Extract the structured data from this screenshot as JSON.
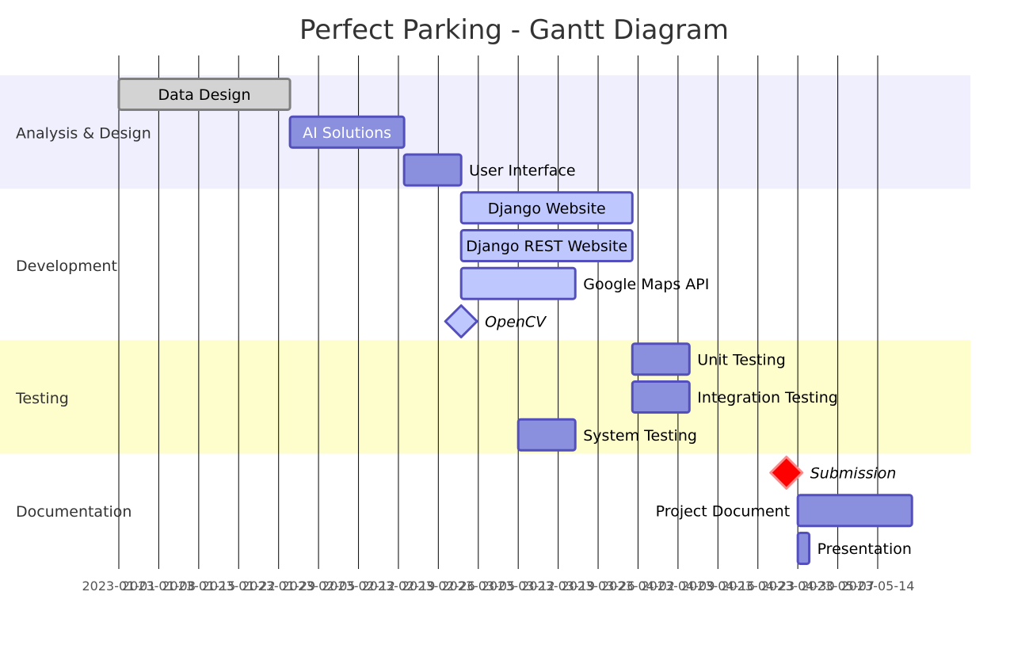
{
  "chart_data": {
    "type": "gantt",
    "title": "Perfect Parking - Gantt Diagram",
    "tick_labels": [
      "2023-01-01",
      "2023-01-08",
      "2023-01-15",
      "2023-01-22",
      "2023-01-29",
      "2023-02-05",
      "2023-02-12",
      "2023-02-19",
      "2023-02-26",
      "2023-03-05",
      "2023-03-12",
      "2023-03-19",
      "2023-03-26",
      "2023-04-02",
      "2023-04-09",
      "2023-04-16",
      "2023-04-23",
      "2023-04-30",
      "2023-05-07",
      "2023-05-14"
    ],
    "axis_start": "2023-01-01",
    "axis_end": "2023-05-14",
    "colors": {
      "section_band_odd": "#efeffd",
      "section_band_even": "#fefdcc",
      "task_fill": "#8a90dd",
      "task_stroke": "#534fbc",
      "active_fill": "#bfc7ff",
      "done_fill": "#d3d3d3",
      "done_stroke": "#808080",
      "crit_fill": "#ff0000",
      "crit_stroke": "#ff8888"
    },
    "sections": [
      {
        "name": "Analysis & Design",
        "tasks": [
          {
            "name": "Data Design",
            "start": "2023-01-01",
            "end": "2023-01-31",
            "status": "done",
            "label_position": "inside"
          },
          {
            "name": "AI Solutions",
            "start": "2023-01-31",
            "end": "2023-02-20",
            "status": "default",
            "label_position": "inside"
          },
          {
            "name": "User Interface",
            "start": "2023-02-20",
            "end": "2023-03-02",
            "status": "default",
            "label_position": "right"
          }
        ]
      },
      {
        "name": "Development",
        "tasks": [
          {
            "name": "Django Website",
            "start": "2023-03-02",
            "end": "2023-04-01",
            "status": "active",
            "label_position": "inside"
          },
          {
            "name": "Django REST Website",
            "start": "2023-03-02",
            "end": "2023-04-01",
            "status": "active",
            "label_position": "inside"
          },
          {
            "name": "Google Maps API",
            "start": "2023-03-02",
            "end": "2023-03-22",
            "status": "active",
            "label_position": "right"
          },
          {
            "name": "OpenCV",
            "start": "2023-03-02",
            "end": "2023-03-02",
            "status": "milestone-active",
            "label_position": "right"
          }
        ]
      },
      {
        "name": "Testing",
        "tasks": [
          {
            "name": "Unit Testing",
            "start": "2023-04-01",
            "end": "2023-04-11",
            "status": "default",
            "label_position": "right"
          },
          {
            "name": "Integration Testing",
            "start": "2023-04-01",
            "end": "2023-04-11",
            "status": "default",
            "label_position": "right"
          },
          {
            "name": "System Testing",
            "start": "2023-03-12",
            "end": "2023-03-22",
            "status": "default",
            "label_position": "right"
          }
        ]
      },
      {
        "name": "Documentation",
        "tasks": [
          {
            "name": "Submission",
            "start": "2023-04-28",
            "end": "2023-04-28",
            "status": "milestone-crit",
            "label_position": "right"
          },
          {
            "name": "Project Document",
            "start": "2023-04-30",
            "end": "2023-05-20",
            "status": "default",
            "label_position": "left"
          },
          {
            "name": "Presentation",
            "start": "2023-04-30",
            "end": "2023-05-02",
            "status": "default",
            "label_position": "right"
          }
        ]
      }
    ]
  }
}
